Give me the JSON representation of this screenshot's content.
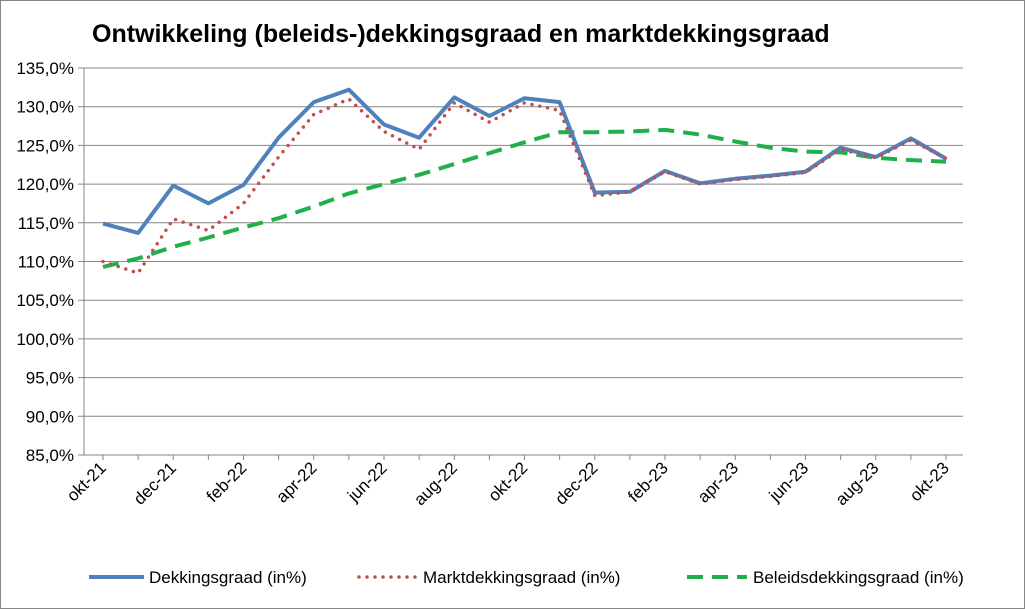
{
  "chart_data": {
    "type": "line",
    "title": "Ontwikkeling (beleids-)dekkingsgraad en marktdekkingsgraad",
    "xlabel": "",
    "ylabel": "",
    "ylim": [
      85,
      135
    ],
    "y_ticks": [
      "85,0%",
      "90,0%",
      "95,0%",
      "100,0%",
      "105,0%",
      "110,0%",
      "115,0%",
      "120,0%",
      "125,0%",
      "130,0%",
      "135,0%"
    ],
    "categories": [
      "okt-21",
      "nov-21",
      "dec-21",
      "jan-22",
      "feb-22",
      "mrt-22",
      "apr-22",
      "mei-22",
      "jun-22",
      "jul-22",
      "aug-22",
      "sep-22",
      "okt-22",
      "nov-22",
      "dec-22",
      "jan-23",
      "feb-23",
      "mrt-23",
      "apr-23",
      "mei-23",
      "jun-23",
      "jul-23",
      "aug-23",
      "sep-23",
      "okt-23"
    ],
    "x_tick_labels": [
      "okt-21",
      "dec-21",
      "feb-22",
      "apr-22",
      "jun-22",
      "aug-22",
      "okt-22",
      "dec-22",
      "feb-23",
      "apr-23",
      "jun-23",
      "aug-23",
      "okt-23"
    ],
    "grid": true,
    "legend_position": "bottom",
    "series": [
      {
        "name": "Dekkingsgraad (in%)",
        "color": "#4f81bd",
        "style": "solid",
        "values": [
          114.9,
          113.7,
          119.8,
          117.5,
          119.9,
          126.0,
          130.6,
          132.2,
          127.7,
          126.0,
          131.2,
          128.8,
          131.1,
          130.6,
          118.9,
          119.0,
          121.7,
          120.1,
          120.7,
          121.1,
          121.6,
          124.7,
          123.5,
          125.9,
          123.3
        ]
      },
      {
        "name": "Marktdekkingsgraad (in%)",
        "color": "#c0504d",
        "style": "dotted",
        "values": [
          110.0,
          108.5,
          115.5,
          114.0,
          117.5,
          123.5,
          129.0,
          131.0,
          126.8,
          124.5,
          130.5,
          128.0,
          130.5,
          129.5,
          118.5,
          119.0,
          121.6,
          120.0,
          120.6,
          121.0,
          121.5,
          124.5,
          123.4,
          125.7,
          123.3
        ]
      },
      {
        "name": "Beleidsdekkingsgraad (in%)",
        "color": "#1fb04b",
        "style": "dashed",
        "values": [
          109.3,
          110.4,
          111.9,
          113.1,
          114.4,
          115.6,
          117.1,
          118.8,
          120.0,
          121.2,
          122.6,
          124.0,
          125.4,
          126.7,
          126.7,
          126.8,
          127.0,
          126.4,
          125.5,
          124.7,
          124.2,
          124.1,
          123.4,
          123.1,
          122.9
        ]
      }
    ]
  }
}
